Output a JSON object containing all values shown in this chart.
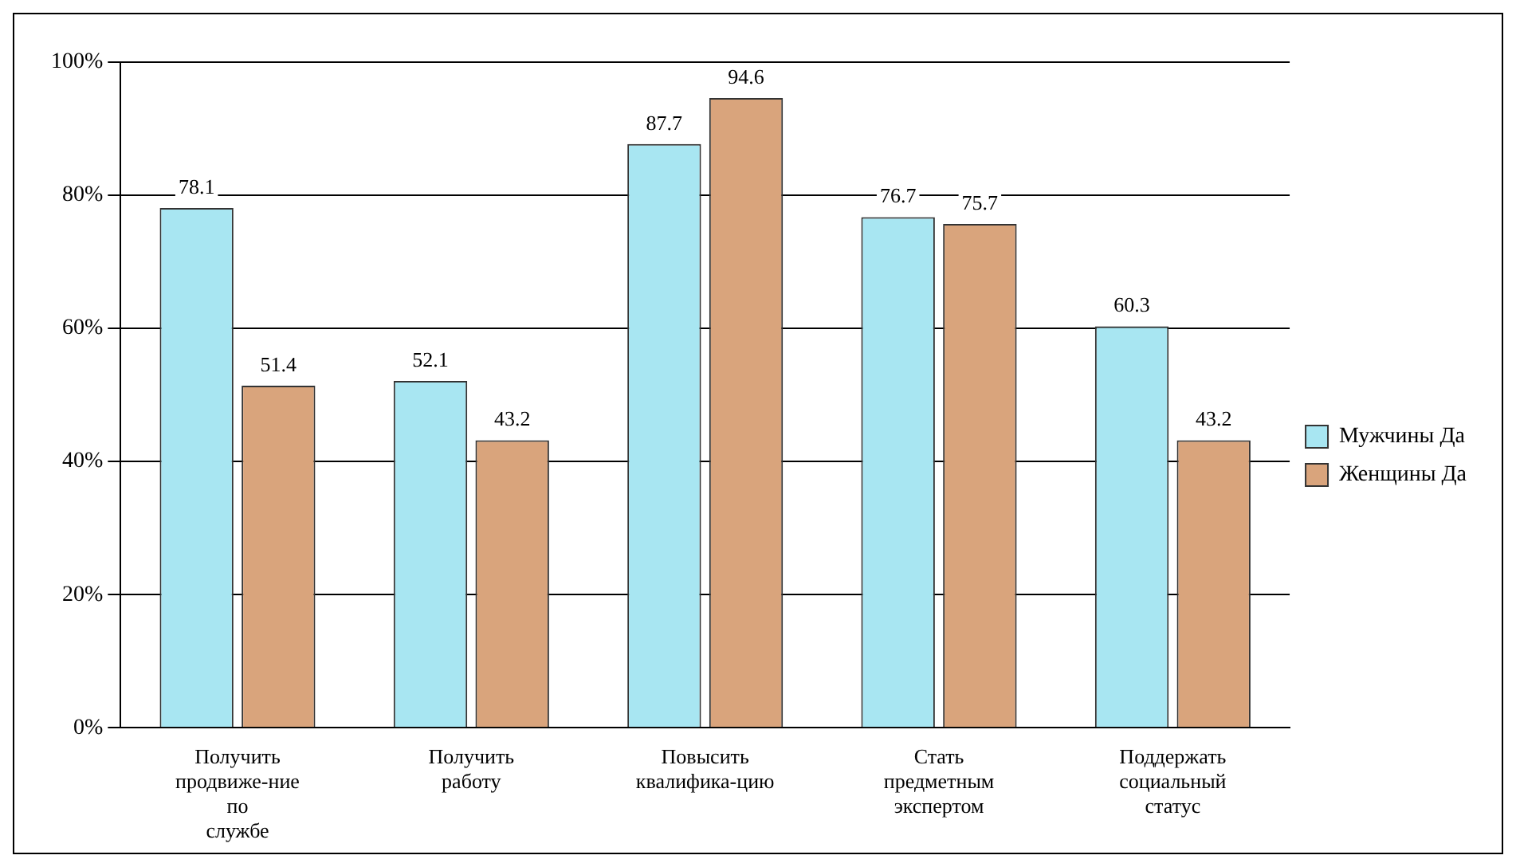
{
  "chart_data": {
    "type": "bar",
    "categories": [
      "Получить продвиже-ние по службе",
      "Получить работу",
      "Повысить квалифика-цию",
      "Стать предметным экспертом",
      "Поддержать социальный статус"
    ],
    "series": [
      {
        "name": "Мужчины Да",
        "color": "#a8e6f2",
        "values": [
          78.1,
          52.1,
          87.7,
          76.7,
          60.3
        ]
      },
      {
        "name": "Женщины Да",
        "color": "#d9a47c",
        "values": [
          51.4,
          43.2,
          94.6,
          75.7,
          43.2
        ]
      }
    ],
    "ylim": [
      0,
      100
    ],
    "yticks": [
      {
        "value": 0,
        "label": "0%"
      },
      {
        "value": 20,
        "label": "20%"
      },
      {
        "value": 40,
        "label": "40%"
      },
      {
        "value": 60,
        "label": "60%"
      },
      {
        "value": 80,
        "label": "80%"
      },
      {
        "value": 100,
        "label": "100%"
      }
    ],
    "grid": "y",
    "legend": "right",
    "data_labels": true
  }
}
